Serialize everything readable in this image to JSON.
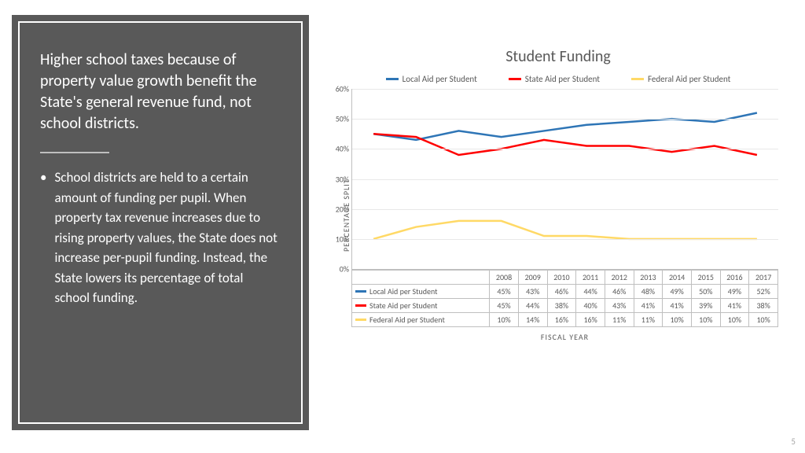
{
  "left": {
    "headline": "Higher school taxes because of property value growth benefit the State's general revenue fund, not school districts.",
    "bullet": "School districts are held to a certain amount of funding per pupil. When property tax revenue increases due to rising property values, the State does not increase per-pupil funding. Instead, the State lowers its percentage of total school funding."
  },
  "chart": {
    "title": "Student Funding",
    "y_axis_label": "PERCENTAGE SPLIT",
    "x_axis_label": "FISCAL YEAR",
    "ylim": [
      0,
      60
    ],
    "ytick_step": 10,
    "years": [
      "2008",
      "2009",
      "2010",
      "2011",
      "2012",
      "2013",
      "2014",
      "2015",
      "2016",
      "2017"
    ],
    "series": [
      {
        "name": "Local Aid per Student",
        "color": "#2e75b6",
        "values": [
          45,
          43,
          46,
          44,
          46,
          48,
          49,
          50,
          49,
          52
        ]
      },
      {
        "name": "State Aid per Student",
        "color": "#ff0000",
        "values": [
          45,
          44,
          38,
          40,
          43,
          41,
          41,
          39,
          41,
          38
        ]
      },
      {
        "name": "Federal Aid per Student",
        "color": "#ffd966",
        "values": [
          10,
          14,
          16,
          16,
          11,
          11,
          10,
          10,
          10,
          10
        ]
      }
    ],
    "line_width": 2.5,
    "grid_color": "#e8e8e8",
    "axis_color": "#bfbfbf",
    "background_color": "#ffffff",
    "tick_fontsize": 10,
    "title_fontsize": 20,
    "title_color": "#595959"
  },
  "page_number": "5"
}
